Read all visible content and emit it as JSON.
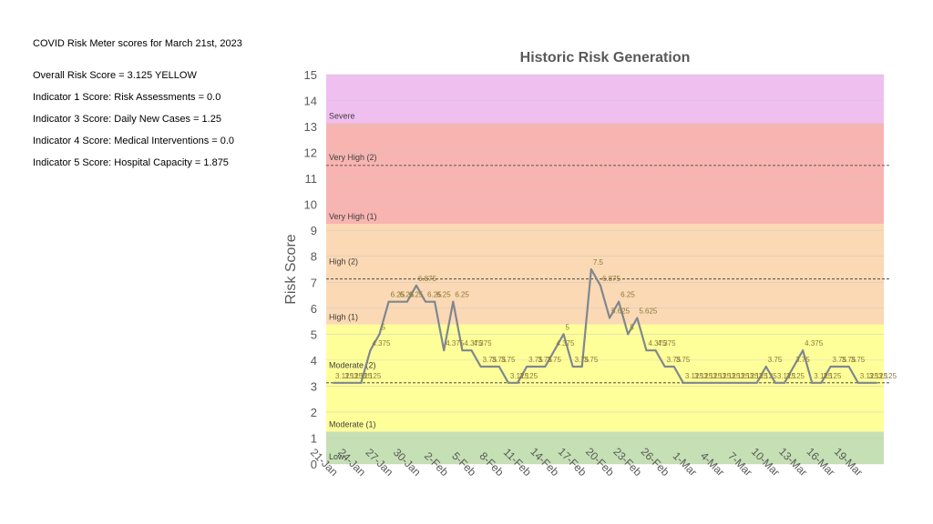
{
  "info": {
    "header": "COVID Risk Meter scores for March 21st, 2023",
    "lines": [
      "Overall Risk Score = 3.125  YELLOW",
      "Indicator 1 Score: Risk Assessments = 0.0",
      "Indicator 3 Score: Daily New Cases  = 1.25",
      "Indicator 4 Score: Medical Interventions  = 0.0",
      "Indicator 5 Score: Hospital Capacity = 1.875"
    ]
  },
  "chart_data": {
    "type": "line",
    "title": "Historic Risk Generation",
    "ylabel": "Risk Score",
    "xlabel": "",
    "ylim": [
      0,
      15
    ],
    "yticks": [
      0,
      1,
      2,
      3,
      4,
      5,
      6,
      7,
      8,
      9,
      10,
      11,
      12,
      13,
      14,
      15
    ],
    "xtick_labels": [
      "21-Jan",
      "24-Jan",
      "27-Jan",
      "30-Jan",
      "2-Feb",
      "5-Feb",
      "8-Feb",
      "11-Feb",
      "14-Feb",
      "17-Feb",
      "20-Feb",
      "23-Feb",
      "26-Feb",
      "1-Mar",
      "4-Mar",
      "7-Mar",
      "10-Mar",
      "13-Mar",
      "16-Mar",
      "19-Mar"
    ],
    "bands": [
      {
        "from": 0,
        "to": 1.25,
        "color": "#c5e0b4",
        "label": "Low"
      },
      {
        "from": 1.25,
        "to": 5.375,
        "color": "#ffff99",
        "label": "Moderate (1)"
      },
      {
        "from": 5.375,
        "to": 9.25,
        "color": "#fbd9b4",
        "label": "High (1)"
      },
      {
        "from": 9.25,
        "to": 13.125,
        "color": "#f8b4b0",
        "label": "Very High (1)"
      },
      {
        "from": 13.125,
        "to": 15,
        "color": "#efbff0",
        "label": "Severe"
      }
    ],
    "sub_labels": [
      {
        "value": 3.7,
        "label": "Moderate (2)"
      },
      {
        "value": 7.7,
        "label": "High (2)"
      },
      {
        "value": 11.7,
        "label": "Very High (2)"
      }
    ],
    "dashed_lines": [
      3.125,
      7.125,
      11.5
    ],
    "x": [
      "21-Jan",
      "22-Jan",
      "23-Jan",
      "24-Jan",
      "25-Jan",
      "26-Jan",
      "27-Jan",
      "28-Jan",
      "29-Jan",
      "30-Jan",
      "31-Jan",
      "1-Feb",
      "2-Feb",
      "3-Feb",
      "4-Feb",
      "5-Feb",
      "6-Feb",
      "7-Feb",
      "8-Feb",
      "9-Feb",
      "10-Feb",
      "11-Feb",
      "12-Feb",
      "13-Feb",
      "14-Feb",
      "15-Feb",
      "16-Feb",
      "17-Feb",
      "18-Feb",
      "19-Feb",
      "20-Feb",
      "21-Feb",
      "22-Feb",
      "23-Feb",
      "24-Feb",
      "25-Feb",
      "26-Feb",
      "27-Feb",
      "28-Feb",
      "1-Mar",
      "2-Mar",
      "3-Mar",
      "4-Mar",
      "5-Mar",
      "6-Mar",
      "7-Mar",
      "8-Mar",
      "9-Mar",
      "10-Mar",
      "11-Mar",
      "12-Mar",
      "13-Mar",
      "14-Mar",
      "15-Mar",
      "16-Mar",
      "17-Mar",
      "18-Mar",
      "19-Mar",
      "20-Mar",
      "21-Mar"
    ],
    "series": [
      {
        "color": "#7f8790",
        "values": [
          3.125,
          3.125,
          3.125,
          3.125,
          4.375,
          5,
          6.25,
          6.25,
          6.25,
          6.875,
          6.25,
          6.25,
          4.375,
          6.25,
          4.375,
          4.375,
          3.75,
          3.75,
          3.75,
          3.125,
          3.125,
          3.75,
          3.75,
          3.75,
          4.375,
          5,
          3.75,
          3.75,
          7.5,
          6.875,
          5.625,
          6.25,
          5,
          5.625,
          4.375,
          4.375,
          3.75,
          3.75,
          3.125,
          3.125,
          3.125,
          3.125,
          3.125,
          3.125,
          3.125,
          3.125,
          3.125,
          3.75,
          3.125,
          3.125,
          3.75,
          4.375,
          3.125,
          3.125,
          3.75,
          3.75,
          3.75,
          3.125,
          3.125,
          3.125
        ],
        "labels": [
          "3.125",
          "3.125",
          "3.125",
          "3.125",
          "4.375",
          "5",
          "6.25",
          "6.25",
          "6.25",
          "6.875",
          "6.25",
          "6.25",
          "4.375",
          "6.25",
          "4.375",
          "4.375",
          "3.75",
          "3.75",
          "3.75",
          "3.125",
          "3.125",
          "3.75",
          "3.75",
          "3.75",
          "4.375",
          "5",
          "3.75",
          "3.75",
          "7.5",
          "6.875",
          "5.625",
          "6.25",
          "5",
          "5.625",
          "4.375",
          "4.375",
          "3.75",
          "3.75",
          "3.125",
          "3.125",
          "3.125",
          "3.125",
          "3.125",
          "3.125",
          "3.125",
          "3.125",
          "3.125",
          "3.75",
          "3.125",
          "3.125",
          "3.75",
          "4.375",
          "3.125",
          "3.125",
          "3.75",
          "3.75",
          "3.75",
          "3.125",
          "3.125",
          "3.125"
        ]
      }
    ],
    "grid": true,
    "legend": "none"
  }
}
